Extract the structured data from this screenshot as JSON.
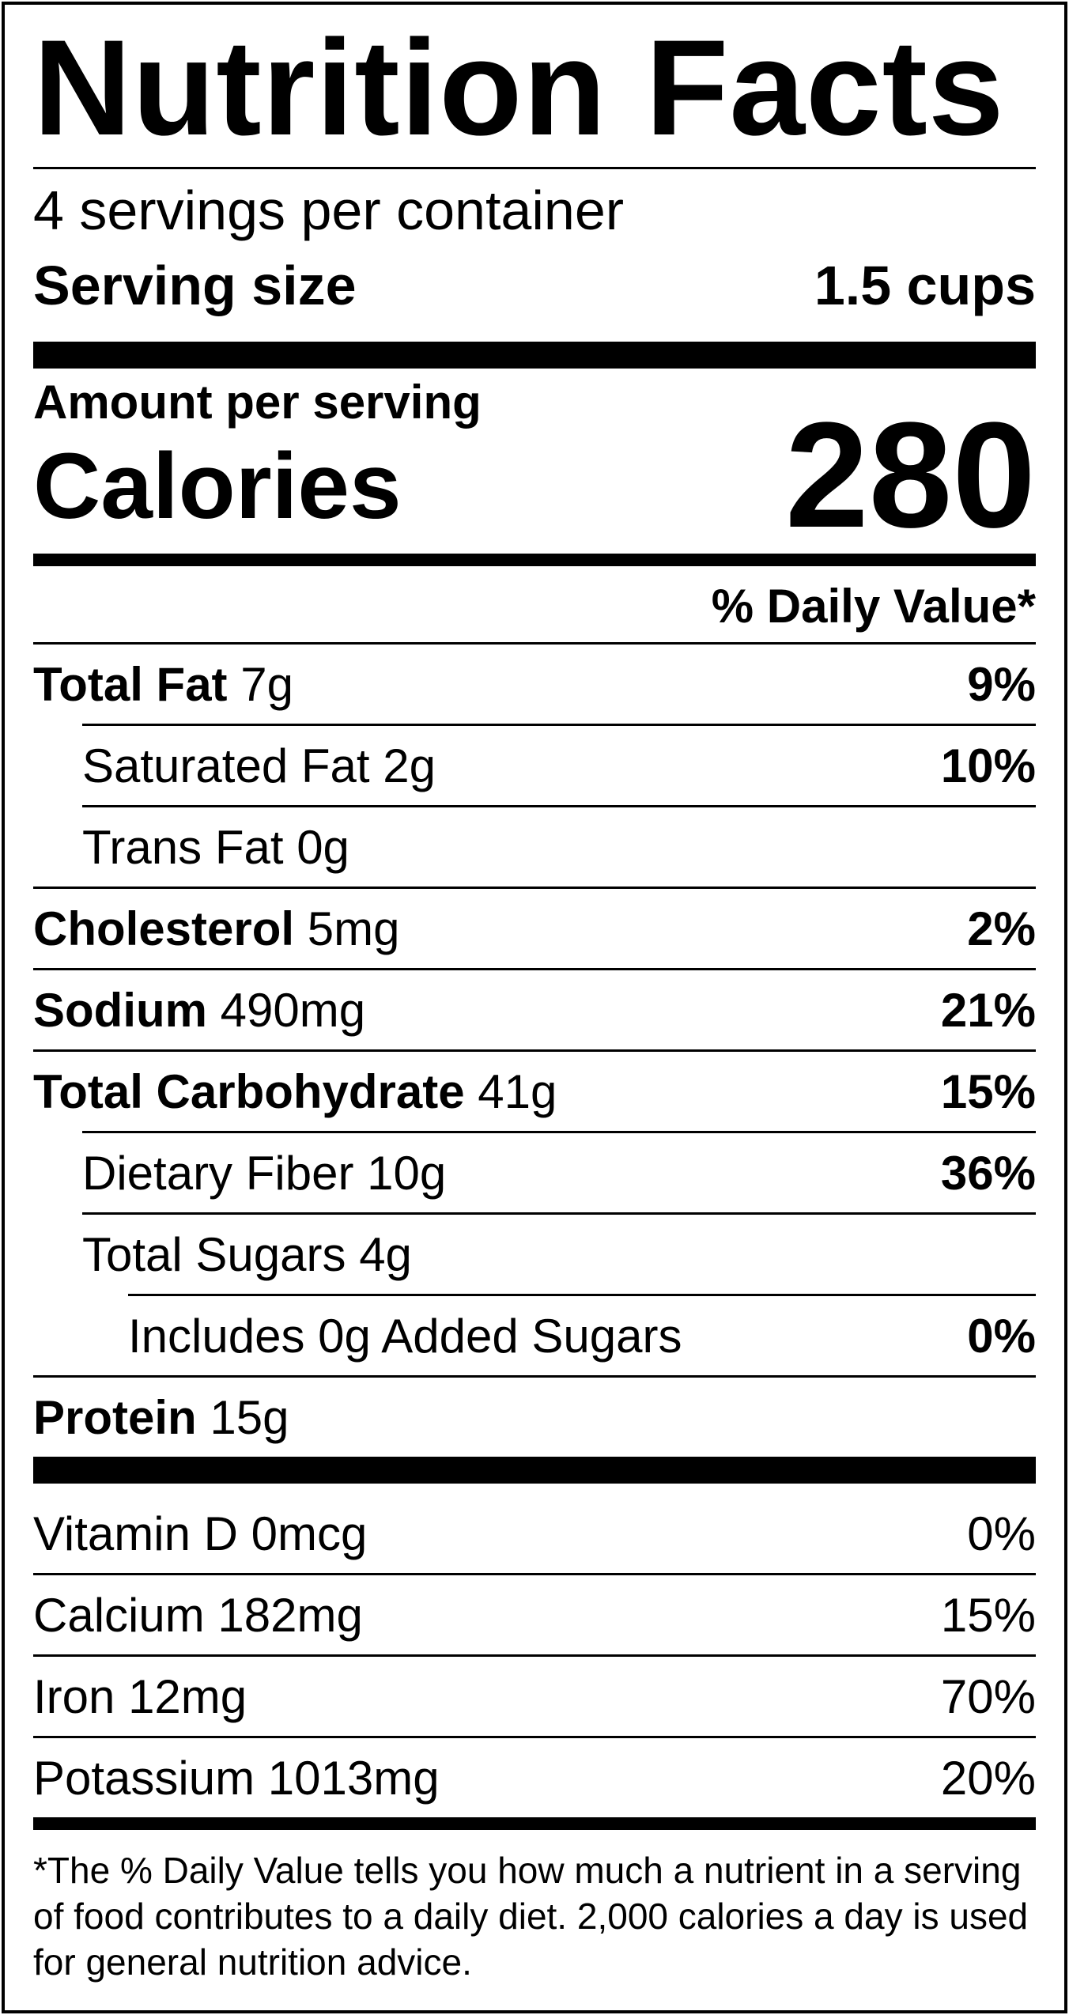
{
  "title": "Nutrition Facts",
  "servings_per_container": "4 servings per container",
  "serving_size": {
    "label": "Serving size",
    "value": "1.5 cups"
  },
  "amount_per_serving": "Amount per serving",
  "calories": {
    "label": "Calories",
    "value": "280"
  },
  "daily_value_header": "% Daily Value*",
  "nutrients": [
    {
      "name": "Total Fat",
      "amount": "7g",
      "dv": "9%"
    },
    {
      "name": "Saturated Fat",
      "amount": "2g",
      "dv": "10%"
    },
    {
      "name": "Trans Fat",
      "amount": "0g",
      "dv": ""
    },
    {
      "name": "Cholesterol",
      "amount": "5mg",
      "dv": "2%"
    },
    {
      "name": "Sodium",
      "amount": "490mg",
      "dv": "21%"
    },
    {
      "name": "Total Carbohydrate",
      "amount": "41g",
      "dv": "15%"
    },
    {
      "name": "Dietary Fiber",
      "amount": "10g",
      "dv": "36%"
    },
    {
      "name": "Total Sugars",
      "amount": "4g",
      "dv": ""
    },
    {
      "name": "Includes 0g Added Sugars",
      "amount": "",
      "dv": "0%"
    },
    {
      "name": "Protein",
      "amount": "15g",
      "dv": ""
    }
  ],
  "vitamins": [
    {
      "name": "Vitamin D",
      "amount": "0mcg",
      "dv": "0%"
    },
    {
      "name": "Calcium",
      "amount": "182mg",
      "dv": "15%"
    },
    {
      "name": "Iron",
      "amount": "12mg",
      "dv": "70%"
    },
    {
      "name": "Potassium",
      "amount": "1013mg",
      "dv": "20%"
    }
  ],
  "footnote": "*The % Daily Value tells you how much a nutrient in a serving of food contributes to a daily diet. 2,000 calories a day is used for general nutrition advice."
}
